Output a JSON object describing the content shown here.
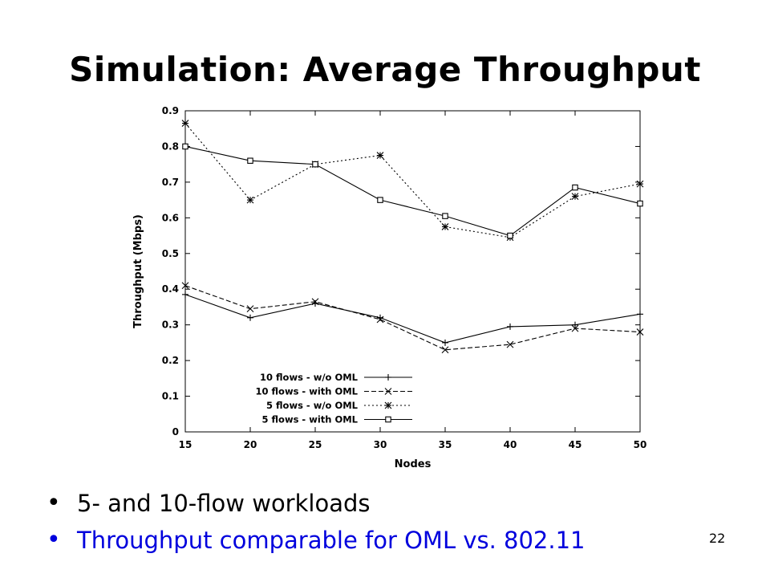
{
  "slide": {
    "title": "Simulation: Average Throughput",
    "bullets": [
      "5- and 10-flow workloads",
      "Throughput comparable for OML vs. 802.11"
    ],
    "page_number": "22",
    "bullet_colors": [
      "#000000",
      "#0000dd"
    ]
  },
  "chart_data": {
    "type": "line",
    "title": "",
    "xlabel": "Nodes",
    "ylabel": "Throughput (Mbps)",
    "x": [
      15,
      20,
      25,
      30,
      35,
      40,
      45,
      50
    ],
    "xlim": [
      15,
      50
    ],
    "ylim": [
      0,
      0.9
    ],
    "xticks": [
      "15",
      "20",
      "25",
      "30",
      "35",
      "40",
      "45",
      "50"
    ],
    "yticks": [
      "0",
      "0.1",
      "0.2",
      "0.3",
      "0.4",
      "0.5",
      "0.6",
      "0.7",
      "0.8",
      "0.9"
    ],
    "grid": false,
    "legend_position": "bottom-left",
    "series": [
      {
        "name": "10 flows - w/o OML",
        "marker": "plus",
        "dash": "solid",
        "values": [
          0.385,
          0.32,
          0.36,
          0.32,
          0.25,
          0.295,
          0.3,
          0.33
        ]
      },
      {
        "name": "10 flows - with OML",
        "marker": "x",
        "dash": "dashed",
        "values": [
          0.41,
          0.345,
          0.365,
          0.315,
          0.23,
          0.245,
          0.29,
          0.28
        ]
      },
      {
        "name": "5 flows - w/o OML",
        "marker": "star",
        "dash": "dotted",
        "values": [
          0.865,
          0.65,
          0.75,
          0.775,
          0.575,
          0.545,
          0.66,
          0.695
        ]
      },
      {
        "name": "5 flows - with OML",
        "marker": "square",
        "dash": "solid",
        "values": [
          0.8,
          0.76,
          0.75,
          0.65,
          0.605,
          0.55,
          0.685,
          0.64
        ]
      }
    ]
  }
}
